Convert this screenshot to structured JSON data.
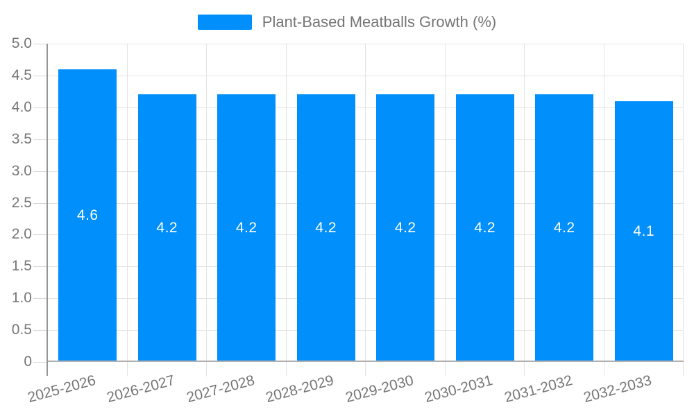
{
  "chart_data": {
    "type": "bar",
    "title": "",
    "legend": {
      "label": "Plant-Based Meatballs Growth (%)",
      "swatch_color": "#008FFB",
      "position": "top-center"
    },
    "categories": [
      "2025-2026",
      "2026-2027",
      "2027-2028",
      "2028-2029",
      "2029-2030",
      "2030-2031",
      "2031-2032",
      "2032-2033"
    ],
    "values": [
      4.6,
      4.2,
      4.2,
      4.2,
      4.2,
      4.2,
      4.2,
      4.1
    ],
    "value_labels": [
      "4.6",
      "4.2",
      "4.2",
      "4.2",
      "4.2",
      "4.2",
      "4.2",
      "4.1"
    ],
    "xlabel": "",
    "ylabel": "",
    "ylim": [
      0,
      5
    ],
    "ytick_step": 0.5,
    "ytick_labels": [
      "0",
      "0.5",
      "1.0",
      "1.5",
      "2.0",
      "2.5",
      "3.0",
      "3.5",
      "4.0",
      "4.5",
      "5.0"
    ],
    "grid": {
      "horizontal": true,
      "vertical": true
    },
    "x_label_rotation_deg": -15,
    "colors": {
      "bar": "#008FFB",
      "value_label": "#ffffff",
      "axis_text": "#757575",
      "legend_text": "#757575"
    }
  }
}
